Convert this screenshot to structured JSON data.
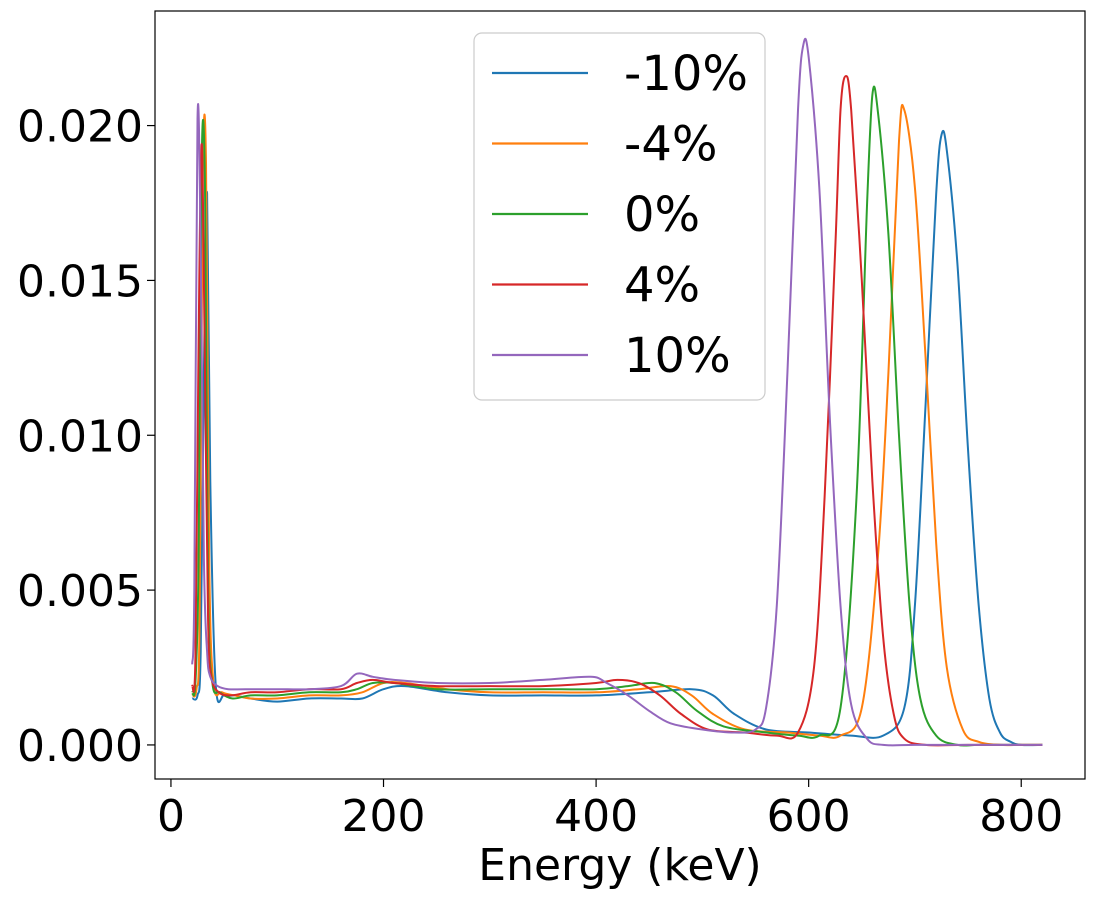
{
  "chart_data": {
    "type": "line",
    "title": "",
    "xlabel": "Energy (keV)",
    "ylabel": "",
    "xlim": [
      -15,
      860
    ],
    "ylim": [
      -0.0011,
      0.0237
    ],
    "xticks": [
      0,
      200,
      400,
      600,
      800
    ],
    "xtick_labels": [
      "0",
      "200",
      "400",
      "600",
      "800"
    ],
    "yticks": [
      0.0,
      0.005,
      0.01,
      0.015,
      0.02
    ],
    "ytick_labels": [
      "0.000",
      "0.005",
      "0.010",
      "0.015",
      "0.020"
    ],
    "grid": false,
    "legend_position": "upper-center",
    "series": [
      {
        "name": "-10%",
        "color": "#1f77b4",
        "x": [
          20,
          25,
          28,
          31,
          34,
          37,
          42,
          50,
          60,
          75,
          100,
          130,
          160,
          180,
          200,
          220,
          260,
          300,
          350,
          400,
          450,
          490,
          510,
          530,
          560,
          600,
          640,
          670,
          690,
          700,
          710,
          720,
          725,
          730,
          740,
          750,
          760,
          770,
          780,
          790,
          800,
          820
        ],
        "y": [
          0.0015,
          0.0016,
          0.003,
          0.012,
          0.0178,
          0.0085,
          0.002,
          0.0016,
          0.0016,
          0.0015,
          0.0014,
          0.0015,
          0.0015,
          0.0015,
          0.0018,
          0.0019,
          0.0017,
          0.0016,
          0.0016,
          0.0016,
          0.0017,
          0.0018,
          0.0016,
          0.001,
          0.0005,
          0.0004,
          0.0003,
          0.0003,
          0.0012,
          0.0045,
          0.011,
          0.0178,
          0.0197,
          0.0192,
          0.0155,
          0.0095,
          0.0045,
          0.0015,
          0.0004,
          0.0001,
          0.0,
          0.0
        ]
      },
      {
        "name": "-4%",
        "color": "#ff7f0e",
        "x": [
          20,
          24,
          27,
          30,
          33,
          36,
          40,
          48,
          60,
          75,
          100,
          130,
          160,
          180,
          200,
          220,
          260,
          300,
          350,
          400,
          440,
          470,
          490,
          510,
          540,
          580,
          610,
          630,
          650,
          665,
          675,
          685,
          690,
          700,
          710,
          720,
          730,
          745,
          760,
          780,
          800,
          820
        ],
        "y": [
          0.0016,
          0.0018,
          0.004,
          0.0185,
          0.0188,
          0.006,
          0.002,
          0.0017,
          0.0016,
          0.0015,
          0.0015,
          0.0016,
          0.0016,
          0.0017,
          0.002,
          0.002,
          0.0018,
          0.0017,
          0.0017,
          0.0017,
          0.0018,
          0.0019,
          0.0016,
          0.001,
          0.0005,
          0.0004,
          0.0003,
          0.0003,
          0.0012,
          0.006,
          0.012,
          0.0195,
          0.0205,
          0.018,
          0.0125,
          0.0065,
          0.0025,
          0.0005,
          0.0001,
          0.0,
          0.0,
          0.0
        ]
      },
      {
        "name": "0%",
        "color": "#2ca02c",
        "x": [
          20,
          23,
          26,
          29,
          32,
          35,
          39,
          46,
          58,
          75,
          100,
          130,
          160,
          175,
          190,
          210,
          250,
          300,
          350,
          400,
          430,
          455,
          475,
          495,
          520,
          560,
          590,
          610,
          630,
          645,
          655,
          660,
          665,
          675,
          685,
          695,
          705,
          720,
          740,
          760,
          800,
          820
        ],
        "y": [
          0.0017,
          0.002,
          0.006,
          0.019,
          0.018,
          0.005,
          0.002,
          0.0017,
          0.0015,
          0.0016,
          0.0016,
          0.0017,
          0.0017,
          0.0018,
          0.002,
          0.002,
          0.0018,
          0.0018,
          0.0018,
          0.0018,
          0.0019,
          0.002,
          0.0017,
          0.0011,
          0.0006,
          0.0004,
          0.0003,
          0.0003,
          0.0012,
          0.008,
          0.0175,
          0.021,
          0.0205,
          0.0165,
          0.01,
          0.0045,
          0.0015,
          0.0003,
          0.0,
          0.0,
          0.0,
          0.0
        ]
      },
      {
        "name": "4%",
        "color": "#d62728",
        "x": [
          20,
          23,
          26,
          29,
          32,
          35,
          38,
          45,
          56,
          75,
          100,
          130,
          160,
          175,
          190,
          210,
          250,
          300,
          350,
          400,
          420,
          440,
          460,
          480,
          505,
          540,
          570,
          590,
          605,
          615,
          625,
          630,
          635,
          640,
          650,
          660,
          670,
          680,
          690,
          710,
          750,
          820
        ],
        "y": [
          0.0019,
          0.0028,
          0.013,
          0.0194,
          0.012,
          0.004,
          0.0022,
          0.0017,
          0.0016,
          0.0017,
          0.0017,
          0.0018,
          0.0018,
          0.002,
          0.0021,
          0.002,
          0.0019,
          0.0019,
          0.0019,
          0.002,
          0.0021,
          0.002,
          0.0016,
          0.001,
          0.0005,
          0.0004,
          0.0003,
          0.0004,
          0.0025,
          0.008,
          0.016,
          0.0205,
          0.0216,
          0.0205,
          0.015,
          0.0085,
          0.0035,
          0.001,
          0.0002,
          0.0,
          0.0,
          0.0
        ]
      },
      {
        "name": "10%",
        "color": "#9467bd",
        "x": [
          20,
          22,
          25,
          28,
          31,
          34,
          37,
          44,
          54,
          70,
          100,
          130,
          160,
          175,
          190,
          210,
          250,
          300,
          350,
          395,
          410,
          430,
          450,
          470,
          500,
          530,
          550,
          560,
          570,
          580,
          590,
          595,
          600,
          610,
          620,
          630,
          640,
          655,
          670,
          700,
          750,
          820
        ],
        "y": [
          0.0026,
          0.005,
          0.0202,
          0.016,
          0.006,
          0.003,
          0.0022,
          0.0019,
          0.0018,
          0.0018,
          0.0018,
          0.0018,
          0.0019,
          0.0023,
          0.0022,
          0.0021,
          0.002,
          0.002,
          0.0021,
          0.0022,
          0.002,
          0.0016,
          0.0011,
          0.0007,
          0.0005,
          0.0004,
          0.0005,
          0.0012,
          0.0045,
          0.012,
          0.0205,
          0.0226,
          0.0222,
          0.018,
          0.0105,
          0.0045,
          0.0013,
          0.0002,
          0.0,
          0.0,
          0.0,
          0.0
        ]
      }
    ]
  }
}
